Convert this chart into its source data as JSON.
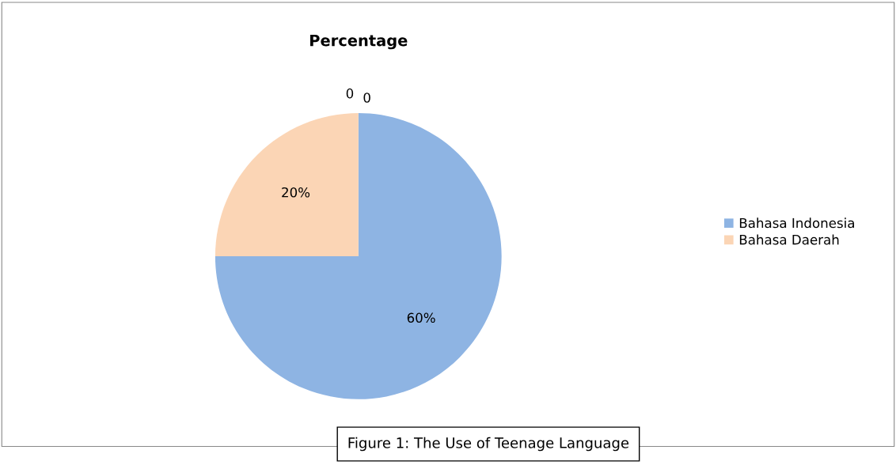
{
  "chart_data": {
    "type": "pie",
    "title": "Percentage",
    "categories": [
      "Bahasa Indonesia",
      "Bahasa Daerah",
      null,
      null
    ],
    "values": [
      60,
      20,
      0,
      0
    ],
    "colors": [
      "#8eb4e3",
      "#fbd5b5",
      "#c3d69b",
      "#b3a2c7"
    ],
    "value_labels": [
      "60%",
      "20%",
      "0",
      "0"
    ],
    "legend": "right",
    "annotations": [
      "Figure 1: The Use of Teenage Language"
    ]
  }
}
